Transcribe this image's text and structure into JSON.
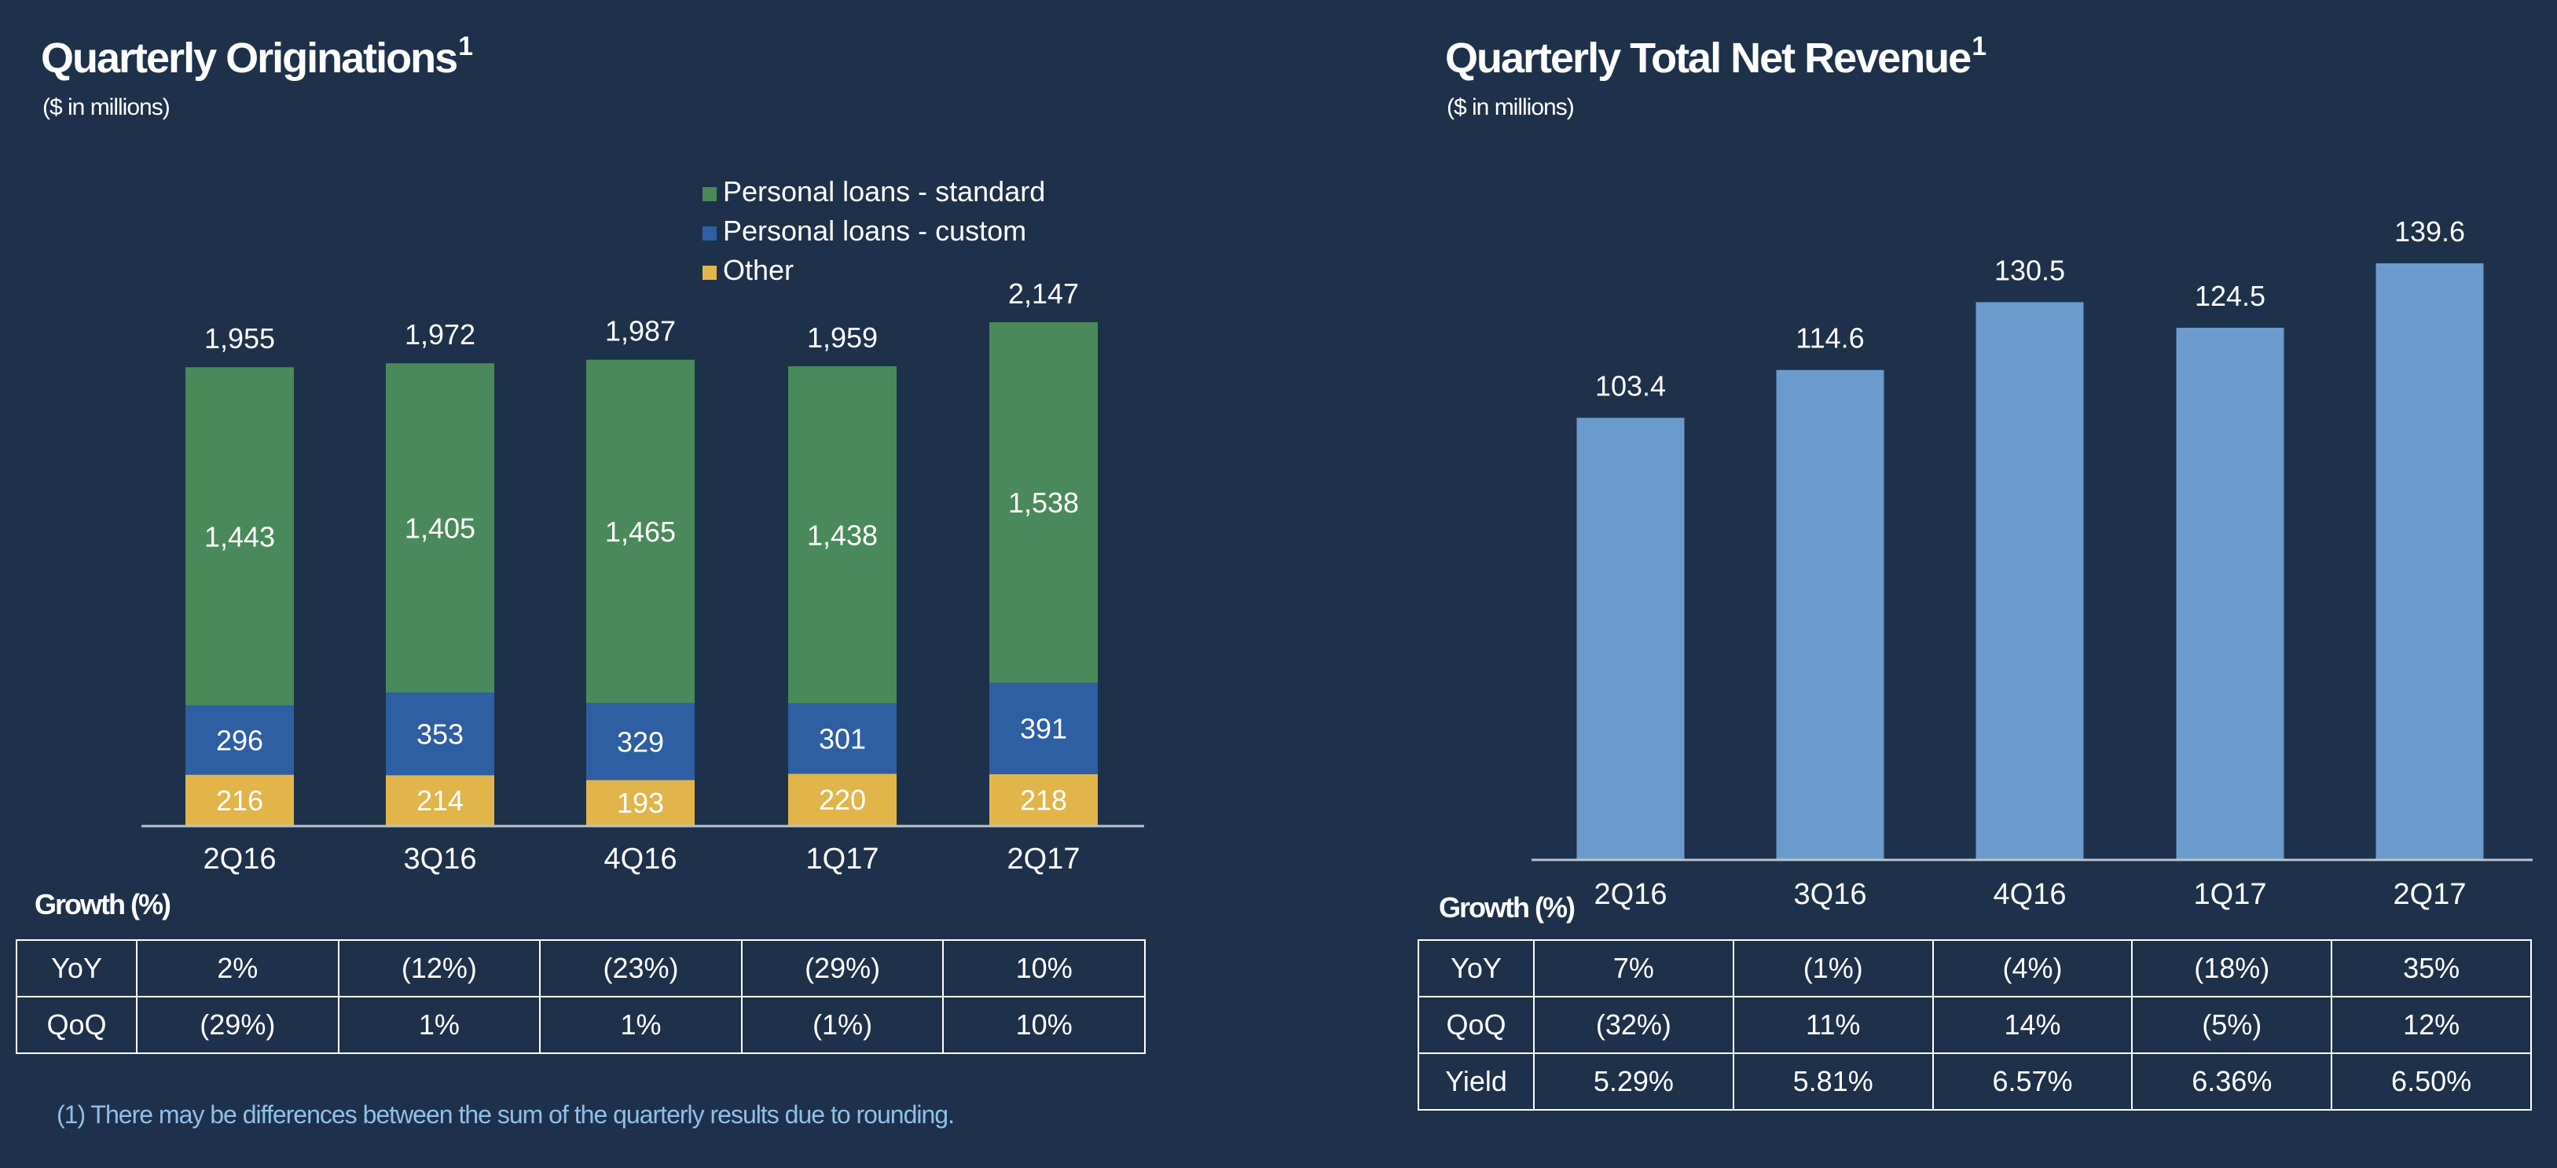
{
  "colors": {
    "background": "#1e314a",
    "standard": "#4a8a5a",
    "custom": "#2d5fa2",
    "other": "#e2b54a",
    "revenue": "#6b9acd",
    "footnote": "#8fc0e6"
  },
  "left": {
    "title": "Quarterly Originations",
    "title_sup": "1",
    "subtitle": "($ in millions)",
    "growth_title": "Growth (%)",
    "growth_rows": [
      {
        "label": "YoY",
        "values": [
          "2%",
          "(12%)",
          "(23%)",
          "(29%)",
          "10%"
        ]
      },
      {
        "label": "QoQ",
        "values": [
          "(29%)",
          "1%",
          "1%",
          "(1%)",
          "10%"
        ]
      }
    ]
  },
  "right": {
    "title": "Quarterly Total Net Revenue",
    "title_sup": "1",
    "subtitle": "($ in millions)",
    "growth_title": "Growth (%)",
    "growth_rows": [
      {
        "label": "YoY",
        "values": [
          "7%",
          "(1%)",
          "(4%)",
          "(18%)",
          "35%"
        ]
      },
      {
        "label": "QoQ",
        "values": [
          "(32%)",
          "11%",
          "14%",
          "(5%)",
          "12%"
        ]
      },
      {
        "label": "Yield",
        "values": [
          "5.29%",
          "5.81%",
          "6.57%",
          "6.36%",
          "6.50%"
        ]
      }
    ]
  },
  "footnote": "(1) There may be differences between the sum of the quarterly results due to rounding.",
  "chart_data": [
    {
      "type": "bar",
      "stacked": true,
      "title": "Quarterly Originations",
      "subtitle": "($ in millions)",
      "categories": [
        "2Q16",
        "3Q16",
        "4Q16",
        "1Q17",
        "2Q17"
      ],
      "series": [
        {
          "name": "Other",
          "values": [
            216,
            214,
            193,
            220,
            218
          ]
        },
        {
          "name": "Personal loans - custom",
          "values": [
            296,
            353,
            329,
            301,
            391
          ]
        },
        {
          "name": "Personal loans - standard",
          "values": [
            1443,
            1405,
            1465,
            1438,
            1538
          ]
        }
      ],
      "totals": [
        1955,
        1972,
        1987,
        1959,
        2147
      ],
      "total_labels": [
        "1,955",
        "1,972",
        "1,987",
        "1,959",
        "2,147"
      ],
      "value_labels": [
        [
          "216",
          "214",
          "193",
          "220",
          "218"
        ],
        [
          "296",
          "353",
          "329",
          "301",
          "391"
        ],
        [
          "1,443",
          "1,405",
          "1,465",
          "1,438",
          "1,538"
        ]
      ],
      "legend": [
        "Personal loans - standard",
        "Personal loans - custom",
        "Other"
      ],
      "legend_position": "top-right",
      "ylim": [
        0,
        2200
      ],
      "grid": false
    },
    {
      "type": "bar",
      "title": "Quarterly Total Net Revenue",
      "subtitle": "($ in millions)",
      "categories": [
        "2Q16",
        "3Q16",
        "4Q16",
        "1Q17",
        "2Q17"
      ],
      "values": [
        103.4,
        114.6,
        130.5,
        124.5,
        139.6
      ],
      "value_labels": [
        "103.4",
        "114.6",
        "130.5",
        "124.5",
        "139.6"
      ],
      "ylim": [
        0,
        141
      ],
      "grid": false
    }
  ]
}
